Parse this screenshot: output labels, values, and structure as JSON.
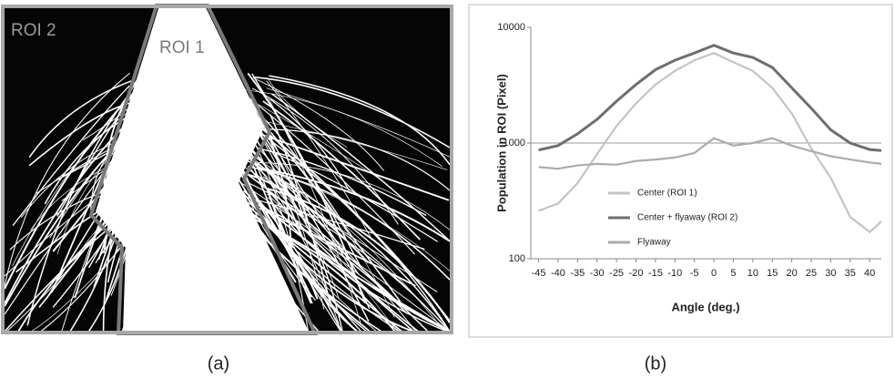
{
  "image_labels": [
    "ROI 2",
    "ROI 1"
  ],
  "captions": [
    "(a)",
    "(b)"
  ],
  "chart_data": {
    "type": "line",
    "x_label": "Angle (deg.)",
    "y_label": "Population in ROI (Pixel)",
    "x": [
      -45,
      -40,
      -35,
      -30,
      -25,
      -20,
      -15,
      -10,
      -5,
      0,
      5,
      10,
      15,
      20,
      25,
      30,
      35,
      40,
      43
    ],
    "series": [
      {
        "name": "Center (ROI 1)",
        "color": "#c4c4c4",
        "values": [
          260,
          300,
          450,
          800,
          1400,
          2200,
          3200,
          4200,
          5200,
          6000,
          5000,
          4200,
          3000,
          1800,
          900,
          500,
          230,
          170,
          210
        ]
      },
      {
        "name": "Center + flyaway (ROI 2)",
        "color": "#6e6e6e",
        "values": [
          870,
          950,
          1200,
          1600,
          2300,
          3200,
          4300,
          5200,
          6000,
          7000,
          6000,
          5500,
          4500,
          3000,
          2000,
          1300,
          1000,
          880,
          860
        ]
      },
      {
        "name": "Flyaway",
        "color": "#ababab",
        "values": [
          620,
          600,
          640,
          660,
          650,
          700,
          720,
          750,
          820,
          1100,
          950,
          1000,
          1100,
          950,
          850,
          770,
          720,
          680,
          660
        ]
      }
    ],
    "xlim": [
      -47,
      43
    ],
    "xticks": [
      -45,
      -40,
      -35,
      -30,
      -25,
      -20,
      -15,
      -10,
      -5,
      0,
      5,
      10,
      15,
      20,
      25,
      30,
      35,
      40
    ],
    "ylim": [
      100,
      10000
    ],
    "yticks": [
      100,
      1000,
      10000
    ],
    "y_scale": "log",
    "grid": true
  }
}
